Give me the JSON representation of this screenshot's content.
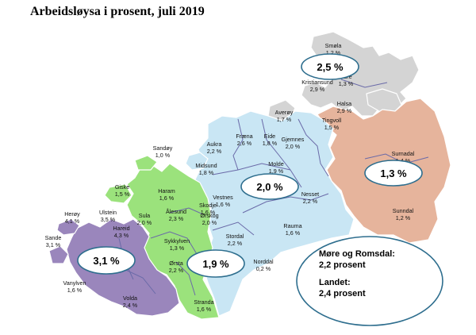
{
  "title": "Arbeidsløysa i prosent, juli 2019",
  "colors": {
    "nordmore_grey": "#d4d4d4",
    "romsdal_blue": "#c9e6f4",
    "sunnmore_north_green": "#9be27c",
    "sunnmore_south_purple": "#9a86bc",
    "inland_east_salmon": "#e6b49c"
  },
  "region_bubbles": [
    {
      "id": "nordmore",
      "value": "2,5 %"
    },
    {
      "id": "romsdal",
      "value": "2,0 %"
    },
    {
      "id": "inland-east",
      "value": "1,3 %"
    },
    {
      "id": "sunnmore-north",
      "value": "1,9 %"
    },
    {
      "id": "sunnmore-south",
      "value": "3,1 %"
    }
  ],
  "summary": {
    "county_label": "Møre og Romsdal:",
    "county_value": "2,2 prosent",
    "country_label": "Landet:",
    "country_value": "2,4 prosent"
  },
  "municipalities": [
    {
      "name": "Smøla",
      "value": "1,2 %"
    },
    {
      "name": "Aure",
      "value": "1,3 %"
    },
    {
      "name": "Kristiansund",
      "value": "2,9 %"
    },
    {
      "name": "Halsa",
      "value": "2,9 %"
    },
    {
      "name": "Averøy",
      "value": "1,7 %"
    },
    {
      "name": "Tingvoll",
      "value": "1,5 %"
    },
    {
      "name": "Surnadal",
      "value": "1,4 %"
    },
    {
      "name": "Sunndal",
      "value": "1,2 %"
    },
    {
      "name": "Gjemnes",
      "value": "2,0 %"
    },
    {
      "name": "Nesset",
      "value": "2,2 %"
    },
    {
      "name": "Fræna",
      "value": "2,6 %"
    },
    {
      "name": "Eide",
      "value": "1,8 %"
    },
    {
      "name": "Aukra",
      "value": "2,2 %"
    },
    {
      "name": "Molde",
      "value": "1,9 %"
    },
    {
      "name": "Midsund",
      "value": "1,8 %"
    },
    {
      "name": "Sandøy",
      "value": "1,0 %"
    },
    {
      "name": "Vestnes",
      "value": "1,6 %"
    },
    {
      "name": "Rauma",
      "value": "1,6 %"
    },
    {
      "name": "Giske",
      "value": "1,5 %"
    },
    {
      "name": "Haram",
      "value": "1,6 %"
    },
    {
      "name": "Skodje",
      "value": "1,6 %"
    },
    {
      "name": "Ålesund",
      "value": "2,3 %"
    },
    {
      "name": "Ørskog",
      "value": "2,0 %"
    },
    {
      "name": "Sula",
      "value": "2,0 %"
    },
    {
      "name": "Herøy",
      "value": "4,1 %"
    },
    {
      "name": "Ulstein",
      "value": "3,5 %"
    },
    {
      "name": "Hareid",
      "value": "4,3 %"
    },
    {
      "name": "Sande",
      "value": "3,1 %"
    },
    {
      "name": "Sykkylven",
      "value": "1,3 %"
    },
    {
      "name": "Stordal",
      "value": "2,2 %"
    },
    {
      "name": "Norddal",
      "value": "0,2 %"
    },
    {
      "name": "Ørsta",
      "value": "2,2 %"
    },
    {
      "name": "Vanylven",
      "value": "1,6 %"
    },
    {
      "name": "Volda",
      "value": "2,4 %"
    },
    {
      "name": "Stranda",
      "value": "1,6 %"
    }
  ]
}
